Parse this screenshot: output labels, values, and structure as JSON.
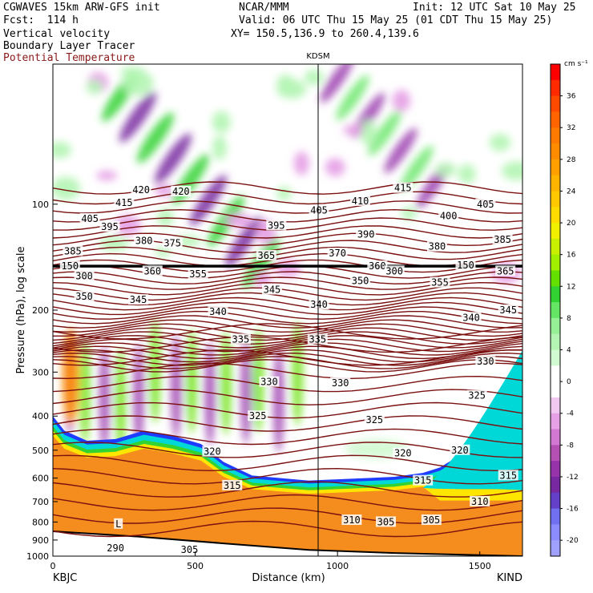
{
  "header": {
    "model": "CGWAVES 15km ARW-GFS init",
    "org": "NCAR/MMM",
    "init": "Init: 12 UTC Sat 10 May 25",
    "fcst": "Fcst:  114 h",
    "valid": "Valid: 06 UTC Thu 15 May 25 (01 CDT Thu 15 May 25)",
    "field1": "Vertical velocity",
    "field2": "Boundary Layer Tracer",
    "field3": "Potential Temperature",
    "xy": "XY= 150.5,136.9 to 260.4,139.6"
  },
  "colors": {
    "theta": "#7a1010",
    "tropopause": "#000000",
    "tracer_orange": "#f58c1e",
    "tracer_yellow": "#ffe600",
    "tracer_cyan": "#00d8d8",
    "tracer_blue": "#1e3cff"
  },
  "chart_data": {
    "type": "heatmap",
    "title": "",
    "xlabel": "Distance (km)",
    "ylabel": "Pressure (hPa), log scale",
    "xlim": [
      0,
      1650
    ],
    "ylim": [
      1000,
      40
    ],
    "yscale": "log",
    "x_ticks": [
      "0",
      "500",
      "1000",
      "1500"
    ],
    "y_ticks": [
      "100",
      "200",
      "300",
      "400",
      "500",
      "600",
      "700",
      "800",
      "900",
      "1000"
    ],
    "endpoint_left": "KBJC",
    "endpoint_right": "KIND",
    "midpoint_station": "KDSM",
    "midpoint_km": 935,
    "colorbar": {
      "units": "cm s⁻¹",
      "tick_labels": [
        "36",
        "32",
        "28",
        "24",
        "20",
        "16",
        "12",
        "8",
        "4",
        "0",
        "-4",
        "-8",
        "-12",
        "-16",
        "-20"
      ],
      "levels": [
        40,
        38,
        36,
        34,
        32,
        30,
        28,
        26,
        24,
        22,
        20,
        18,
        16,
        14,
        12,
        10,
        8,
        6,
        4,
        2,
        0,
        -2,
        -4,
        -6,
        -8,
        -10,
        -12,
        -14,
        -16,
        -18,
        -20,
        -22
      ],
      "colors": [
        "#ff0000",
        "#ff2a00",
        "#ff4a00",
        "#ff6400",
        "#ff7a00",
        "#ff8c00",
        "#ffa000",
        "#ffb400",
        "#ffc800",
        "#ffdc00",
        "#f0f000",
        "#c8f000",
        "#a0f000",
        "#64e000",
        "#32d232",
        "#64e664",
        "#96f096",
        "#b4f5b4",
        "#d2fad2",
        "#ffffff",
        "#ffffff",
        "#f0c8f0",
        "#e6a0e6",
        "#d278d2",
        "#b450b4",
        "#9632aa",
        "#7828a0",
        "#6440c8",
        "#7070f0",
        "#8c8cff",
        "#a0a0ff"
      ]
    },
    "theta_labels": [
      {
        "v": "420",
        "x": 310,
        "p": 91
      },
      {
        "v": "420",
        "x": 450,
        "p": 92
      },
      {
        "v": "415",
        "x": 250,
        "p": 99
      },
      {
        "v": "415",
        "x": 1230,
        "p": 90
      },
      {
        "v": "410",
        "x": 1080,
        "p": 98
      },
      {
        "v": "405",
        "x": 130,
        "p": 110
      },
      {
        "v": "405",
        "x": 935,
        "p": 104
      },
      {
        "v": "405",
        "x": 1520,
        "p": 100
      },
      {
        "v": "400",
        "x": 1390,
        "p": 108
      },
      {
        "v": "395",
        "x": 200,
        "p": 116
      },
      {
        "v": "395",
        "x": 785,
        "p": 115
      },
      {
        "v": "390",
        "x": 1100,
        "p": 122
      },
      {
        "v": "385",
        "x": 70,
        "p": 136
      },
      {
        "v": "385",
        "x": 1580,
        "p": 126
      },
      {
        "v": "380",
        "x": 320,
        "p": 127
      },
      {
        "v": "380",
        "x": 1350,
        "p": 132
      },
      {
        "v": "375",
        "x": 420,
        "p": 129
      },
      {
        "v": "370",
        "x": 1000,
        "p": 138
      },
      {
        "v": "365",
        "x": 750,
        "p": 140
      },
      {
        "v": "365",
        "x": 1590,
        "p": 155
      },
      {
        "v": "360",
        "x": 350,
        "p": 155
      },
      {
        "v": "360",
        "x": 1140,
        "p": 150
      },
      {
        "v": "355",
        "x": 510,
        "p": 158
      },
      {
        "v": "355",
        "x": 1360,
        "p": 167
      },
      {
        "v": "350",
        "x": 110,
        "p": 183
      },
      {
        "v": "350",
        "x": 1080,
        "p": 165
      },
      {
        "v": "345",
        "x": 300,
        "p": 187
      },
      {
        "v": "345",
        "x": 770,
        "p": 175
      },
      {
        "v": "345",
        "x": 1600,
        "p": 200
      },
      {
        "v": "340",
        "x": 580,
        "p": 202
      },
      {
        "v": "340",
        "x": 935,
        "p": 193
      },
      {
        "v": "340",
        "x": 1470,
        "p": 210
      },
      {
        "v": "335",
        "x": 660,
        "p": 242
      },
      {
        "v": "335",
        "x": 930,
        "p": 242
      },
      {
        "v": "330",
        "x": 760,
        "p": 320
      },
      {
        "v": "330",
        "x": 1010,
        "p": 322
      },
      {
        "v": "330",
        "x": 1520,
        "p": 280
      },
      {
        "v": "325",
        "x": 720,
        "p": 400
      },
      {
        "v": "325",
        "x": 1130,
        "p": 410
      },
      {
        "v": "325",
        "x": 1490,
        "p": 350
      },
      {
        "v": "320",
        "x": 560,
        "p": 505
      },
      {
        "v": "320",
        "x": 1230,
        "p": 510
      },
      {
        "v": "320",
        "x": 1430,
        "p": 500
      },
      {
        "v": "315",
        "x": 630,
        "p": 630
      },
      {
        "v": "315",
        "x": 1300,
        "p": 610
      },
      {
        "v": "315",
        "x": 1600,
        "p": 590
      },
      {
        "v": "310",
        "x": 1050,
        "p": 790
      },
      {
        "v": "310",
        "x": 1500,
        "p": 700
      },
      {
        "v": "305",
        "x": 1170,
        "p": 800
      },
      {
        "v": "305",
        "x": 1330,
        "p": 790
      },
      {
        "v": "305",
        "x": 480,
        "p": 960
      },
      {
        "v": "300",
        "x": 110,
        "p": 160
      },
      {
        "v": "300",
        "x": 1200,
        "p": 155
      },
      {
        "v": "290",
        "x": 220,
        "p": 950
      }
    ],
    "tropopause_labels": [
      {
        "v": "150",
        "x": 60,
        "p": 150
      },
      {
        "v": "150",
        "x": 1450,
        "p": 149
      }
    ],
    "marker_L": {
      "v": "L",
      "x": 230,
      "p": 810
    }
  }
}
